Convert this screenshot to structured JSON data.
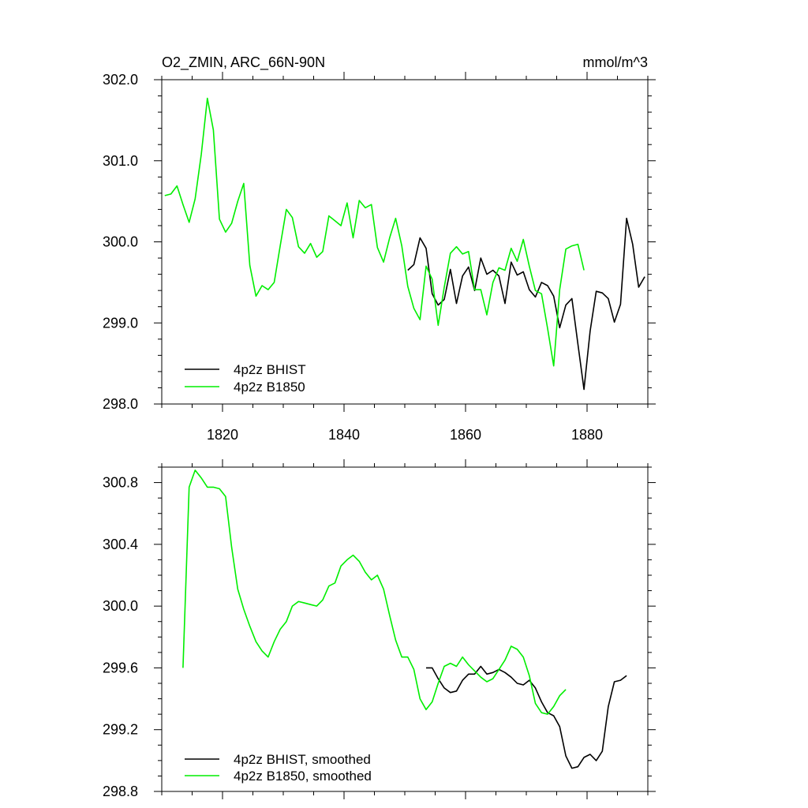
{
  "chart_data": [
    {
      "type": "line",
      "title": "O2_ZMIN, ARC_66N-90N",
      "units": "mmol/m^3",
      "xlim": [
        1810,
        1890
      ],
      "ylim": [
        298.0,
        302.0
      ],
      "xticks": [
        1820,
        1840,
        1860,
        1880
      ],
      "xtick_labels": [
        "1820",
        "1840",
        "1860",
        "1880"
      ],
      "yticks": [
        298.0,
        299.0,
        300.0,
        301.0,
        302.0
      ],
      "ytick_labels": [
        "298.0",
        "299.0",
        "300.0",
        "301.0",
        "302.0"
      ],
      "legend_position": "bottom-left",
      "series": [
        {
          "name": "4p2z BHIST",
          "color": "#000000",
          "x0": 1850.5,
          "step": 1,
          "values": [
            299.65,
            299.72,
            300.05,
            299.92,
            299.36,
            299.22,
            299.29,
            299.66,
            299.24,
            299.58,
            299.69,
            299.4,
            299.8,
            299.6,
            299.65,
            299.58,
            299.24,
            299.75,
            299.59,
            299.63,
            299.41,
            299.32,
            299.5,
            299.46,
            299.33,
            298.94,
            299.22,
            299.3,
            298.74,
            298.18,
            298.9,
            299.39,
            299.37,
            299.3,
            299.01,
            299.23,
            300.29,
            299.97,
            299.44,
            299.57
          ]
        },
        {
          "name": "4p2z B1850",
          "color": "#00ee00",
          "x0": 1810.5,
          "step": 1,
          "values": [
            300.57,
            300.59,
            300.69,
            300.46,
            300.24,
            300.53,
            301.08,
            301.77,
            301.38,
            300.28,
            300.12,
            300.23,
            300.5,
            300.72,
            299.71,
            299.33,
            299.46,
            299.41,
            299.5,
            299.95,
            300.4,
            300.3,
            299.94,
            299.86,
            299.98,
            299.81,
            299.88,
            300.32,
            300.26,
            300.2,
            300.48,
            300.05,
            300.51,
            300.42,
            300.46,
            299.93,
            299.75,
            300.05,
            300.29,
            299.95,
            299.45,
            299.18,
            299.04,
            299.7,
            299.54,
            298.97,
            299.44,
            299.86,
            299.94,
            299.85,
            299.88,
            299.41,
            299.41,
            299.1,
            299.5,
            299.68,
            299.65,
            299.92,
            299.76,
            300.03,
            299.7,
            299.4,
            299.36,
            298.93,
            298.47,
            299.41,
            299.91,
            299.95,
            299.97,
            299.65
          ]
        }
      ]
    },
    {
      "type": "line",
      "title": "",
      "xlim": [
        1810,
        1890
      ],
      "ylim": [
        298.8,
        300.9
      ],
      "xticks": [
        1820,
        1840,
        1860,
        1880
      ],
      "yticks": [
        298.8,
        299.2,
        299.6,
        300.0,
        300.4,
        300.8
      ],
      "ytick_labels": [
        "298.8",
        "299.2",
        "299.6",
        "300.0",
        "300.4",
        "300.8"
      ],
      "legend_position": "bottom-left",
      "series": [
        {
          "name": "4p2z BHIST, smoothed",
          "color": "#000000",
          "x0": 1853.5,
          "step": 1,
          "values": [
            299.6,
            299.6,
            299.53,
            299.47,
            299.44,
            299.45,
            299.52,
            299.56,
            299.56,
            299.61,
            299.56,
            299.57,
            299.59,
            299.57,
            299.54,
            299.5,
            299.49,
            299.52,
            299.47,
            299.38,
            299.31,
            299.29,
            299.22,
            299.03,
            298.95,
            298.96,
            299.02,
            299.04,
            299.0,
            299.06,
            299.35,
            299.51,
            299.52,
            299.55
          ]
        },
        {
          "name": "4p2z B1850, smoothed",
          "color": "#00ee00",
          "x0": 1813.5,
          "step": 1,
          "values": [
            299.6,
            300.77,
            300.88,
            300.83,
            300.77,
            300.77,
            300.76,
            300.71,
            300.38,
            300.11,
            299.98,
            299.87,
            299.77,
            299.71,
            299.67,
            299.77,
            299.85,
            299.9,
            300.0,
            300.03,
            300.02,
            300.01,
            300.0,
            300.04,
            300.13,
            300.15,
            300.26,
            300.3,
            300.33,
            300.29,
            300.22,
            300.17,
            300.2,
            300.11,
            299.94,
            299.78,
            299.67,
            299.67,
            299.59,
            299.4,
            299.33,
            299.38,
            299.5,
            299.61,
            299.63,
            299.61,
            299.67,
            299.62,
            299.58,
            299.54,
            299.51,
            299.53,
            299.59,
            299.65,
            299.74,
            299.72,
            299.67,
            299.55,
            299.37,
            299.31,
            299.3,
            299.35,
            299.42,
            299.46
          ]
        }
      ]
    }
  ]
}
